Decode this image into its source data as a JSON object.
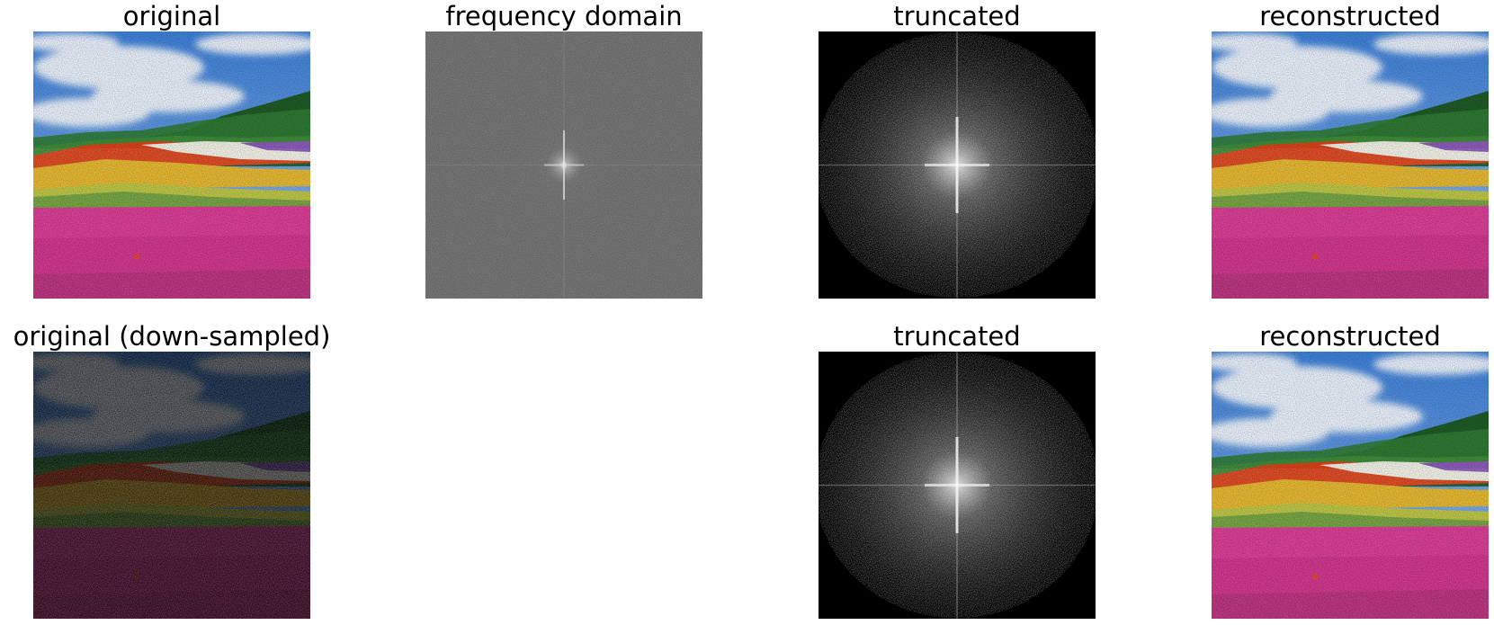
{
  "figure": {
    "row1": {
      "original": {
        "title": "original"
      },
      "frequency": {
        "title": "frequency domain"
      },
      "truncated": {
        "title": "truncated"
      },
      "reconstructed": {
        "title": "reconstructed"
      }
    },
    "row2": {
      "original": {
        "title": "original (down-sampled)"
      },
      "truncated": {
        "title": "truncated"
      },
      "reconstructed": {
        "title": "reconstructed"
      }
    }
  }
}
